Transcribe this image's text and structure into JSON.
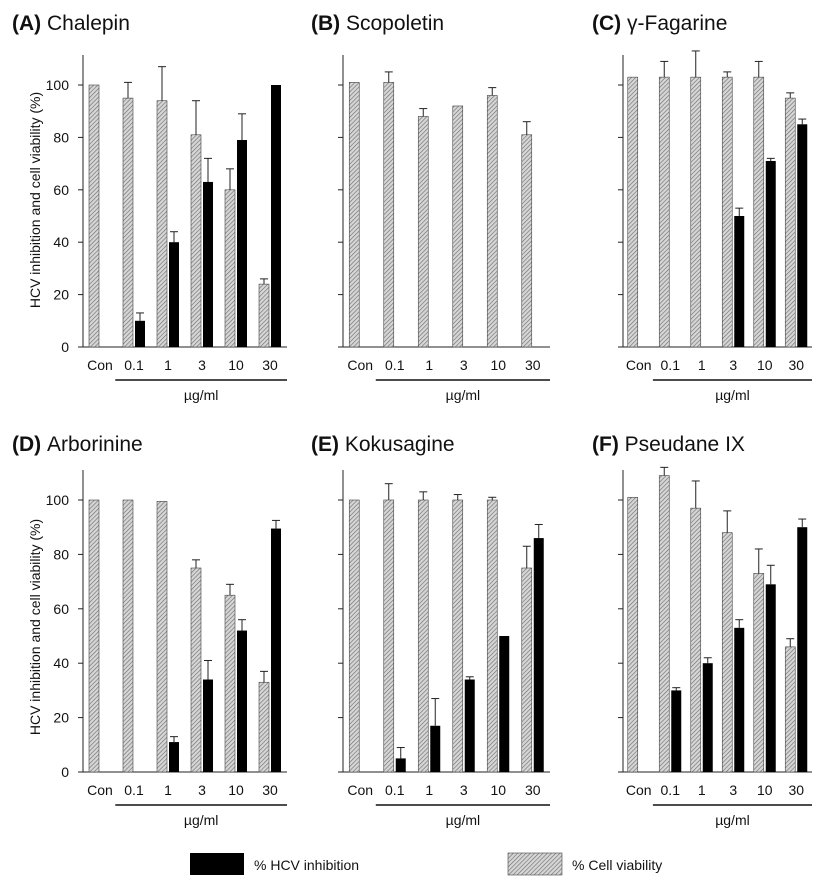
{
  "figure": {
    "ylabel": "HCV inhibition and cell viability (%)",
    "ylabel_bottom": "HCV  inhibition and cell viability (%)",
    "xlabel": "µg/ml",
    "legend": {
      "hcv": "% HCV inhibition",
      "viability": "% Cell viability"
    },
    "colors": {
      "hcv": "#000000",
      "viability_fill": "#d6d6d6",
      "viability_hatch": "#6a6a6a"
    }
  },
  "chart_data": [
    {
      "type": "bar",
      "panel": "(A)",
      "title": "Chalepin",
      "categories": [
        "Con",
        "0.1",
        "1",
        "3",
        "10",
        "30"
      ],
      "ylim": [
        0,
        110
      ],
      "yticks": [
        "0",
        "20",
        "40",
        "60",
        "80",
        "100"
      ],
      "series": [
        {
          "name": "% Cell viability",
          "values": [
            100,
            95,
            94,
            81,
            60,
            24
          ],
          "errors": [
            0,
            6,
            13,
            13,
            8,
            2
          ]
        },
        {
          "name": "% HCV inhibition",
          "values": [
            null,
            10,
            40,
            63,
            79,
            100
          ],
          "errors": [
            0,
            3,
            4,
            9,
            10,
            0
          ]
        }
      ]
    },
    {
      "type": "bar",
      "panel": "(B)",
      "title": "Scopoletin",
      "categories": [
        "Con",
        "0.1",
        "1",
        "3",
        "10",
        "30"
      ],
      "ylim": [
        0,
        110
      ],
      "yticks": [],
      "series": [
        {
          "name": "% Cell viability",
          "values": [
            101,
            101,
            88,
            92,
            96,
            81
          ],
          "errors": [
            0,
            4,
            3,
            0,
            3,
            5
          ]
        },
        {
          "name": "% HCV inhibition",
          "values": [
            null,
            null,
            null,
            null,
            null,
            null
          ],
          "errors": [
            0,
            0,
            0,
            0,
            0,
            0
          ]
        }
      ]
    },
    {
      "type": "bar",
      "panel": "(C)",
      "title": "γ-Fagarine",
      "categories": [
        "Con",
        "0.1",
        "1",
        "3",
        "10",
        "30"
      ],
      "ylim": [
        0,
        110
      ],
      "yticks": [],
      "series": [
        {
          "name": "% Cell viability",
          "values": [
            103,
            103,
            103,
            103,
            103,
            95
          ],
          "errors": [
            0,
            6,
            10,
            2,
            6,
            2
          ]
        },
        {
          "name": "% HCV inhibition",
          "values": [
            null,
            null,
            null,
            50,
            71,
            85
          ],
          "errors": [
            0,
            0,
            0,
            3,
            1,
            2
          ]
        }
      ]
    },
    {
      "type": "bar",
      "panel": "(D)",
      "title": "Arborinine",
      "categories": [
        "Con",
        "0.1",
        "1",
        "3",
        "10",
        "30"
      ],
      "ylim": [
        0,
        110
      ],
      "yticks": [
        "0",
        "20",
        "40",
        "60",
        "80",
        "100"
      ],
      "series": [
        {
          "name": "% Cell viability",
          "values": [
            100,
            100,
            99.5,
            75,
            65,
            33
          ],
          "errors": [
            0,
            0,
            0,
            3,
            4,
            4
          ]
        },
        {
          "name": "% HCV inhibition",
          "values": [
            null,
            null,
            11,
            34,
            52,
            89.5
          ],
          "errors": [
            0,
            0,
            2,
            7,
            4,
            3
          ]
        }
      ]
    },
    {
      "type": "bar",
      "panel": "(E)",
      "title": "Kokusagine",
      "categories": [
        "Con",
        "0.1",
        "1",
        "3",
        "10",
        "30"
      ],
      "ylim": [
        0,
        110
      ],
      "yticks": [],
      "series": [
        {
          "name": "% Cell viability",
          "values": [
            100,
            100,
            100,
            100,
            100,
            75
          ],
          "errors": [
            0,
            6,
            3,
            2,
            1,
            8
          ]
        },
        {
          "name": "% HCV inhibition",
          "values": [
            null,
            5,
            17,
            34,
            50,
            86
          ],
          "errors": [
            0,
            4,
            10,
            1,
            0,
            5
          ]
        }
      ]
    },
    {
      "type": "bar",
      "panel": "(F)",
      "title": "Pseudane IX",
      "categories": [
        "Con",
        "0.1",
        "1",
        "3",
        "10",
        "30"
      ],
      "ylim": [
        0,
        110
      ],
      "yticks": [],
      "series": [
        {
          "name": "% Cell viability",
          "values": [
            101,
            109,
            97,
            88,
            73,
            46
          ],
          "errors": [
            0,
            3,
            10,
            8,
            9,
            3
          ]
        },
        {
          "name": "% HCV inhibition",
          "values": [
            null,
            30,
            40,
            53,
            69,
            90
          ],
          "errors": [
            0,
            1,
            2,
            3,
            7,
            3
          ]
        }
      ]
    }
  ]
}
